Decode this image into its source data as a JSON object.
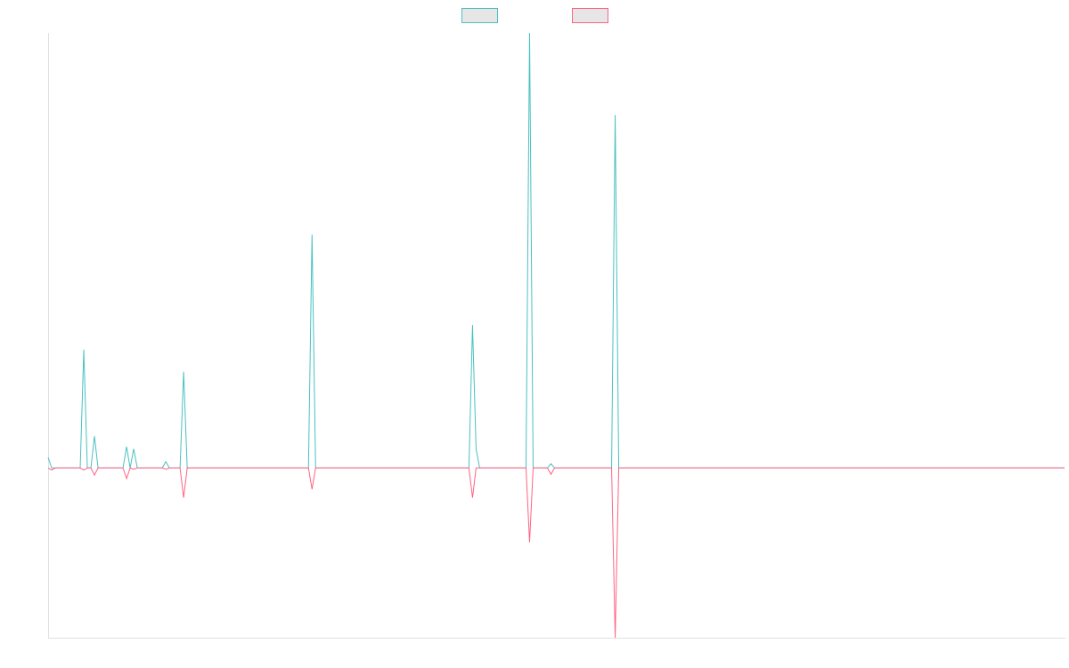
{
  "chart_data": {
    "type": "line",
    "title": "",
    "xlabel": "",
    "ylabel": "",
    "grid": false,
    "legend_placement": "top-center",
    "x": [
      0,
      1,
      2,
      3,
      4,
      5,
      6,
      7,
      8,
      9,
      10,
      11,
      12,
      13,
      14,
      15,
      16,
      17,
      18,
      19,
      20,
      21,
      22,
      23,
      24,
      25,
      26,
      27,
      28,
      29,
      30,
      31,
      32,
      33,
      34,
      35,
      36,
      37,
      38,
      39,
      40,
      41,
      42,
      43,
      44,
      45,
      46,
      47,
      48,
      49,
      50,
      51,
      52,
      53,
      54,
      55,
      56,
      57,
      58,
      59,
      60,
      61,
      62,
      63,
      64,
      65,
      66,
      67,
      68,
      69,
      70,
      71,
      72,
      73,
      74,
      75,
      76,
      77,
      78,
      79,
      80,
      81,
      82,
      83,
      84,
      85,
      86,
      87,
      88,
      89,
      90,
      91,
      92,
      93,
      94,
      95,
      96,
      97,
      98,
      99,
      100,
      101,
      102,
      103,
      104,
      105,
      106,
      107,
      108,
      109,
      110,
      111,
      112,
      113,
      114,
      115,
      116,
      117,
      118,
      119,
      120,
      121,
      122,
      123,
      124,
      125,
      126,
      127,
      128,
      129,
      130,
      131,
      132,
      133,
      134,
      135,
      136,
      137,
      138,
      139,
      140,
      141,
      142,
      143,
      144,
      145,
      146,
      147,
      148,
      149,
      150,
      151,
      152,
      153,
      154,
      155,
      156,
      157,
      158,
      159,
      160,
      161,
      162,
      163,
      164,
      165,
      166,
      167,
      168,
      169,
      170,
      171,
      172,
      173,
      174,
      175,
      176,
      177,
      178,
      179,
      180,
      181,
      182,
      183,
      184,
      185,
      186,
      187,
      188,
      189,
      190,
      191,
      192,
      193,
      194,
      195,
      196,
      197,
      198,
      199,
      200,
      201,
      202,
      203,
      204,
      205,
      206,
      207,
      208,
      209,
      210,
      211,
      212,
      213,
      214,
      215,
      216,
      217,
      218,
      219,
      220,
      221,
      222,
      223,
      224,
      225,
      226,
      227,
      228,
      229,
      230,
      231,
      232,
      233,
      234,
      235,
      236,
      237,
      238,
      239,
      240,
      241,
      242,
      243,
      244,
      245,
      246,
      247,
      248,
      249,
      250,
      251,
      252,
      253,
      254,
      255,
      256,
      257,
      258,
      259,
      260,
      261,
      262,
      263,
      264,
      265,
      266,
      267,
      268,
      269,
      270,
      271,
      272,
      273,
      274,
      275,
      276,
      277,
      278,
      279,
      280,
      281,
      282,
      283,
      284,
      285
    ],
    "ylim": [
      -240,
      615
    ],
    "series": [
      {
        "color": "#4bc0c0",
        "points": [
          [
            0,
            15
          ],
          [
            1,
            0
          ],
          [
            9,
            0
          ],
          [
            10,
            167
          ],
          [
            11,
            0
          ],
          [
            12,
            0
          ],
          [
            13,
            45
          ],
          [
            14,
            0
          ],
          [
            21,
            0
          ],
          [
            22,
            30
          ],
          [
            23,
            0
          ],
          [
            24,
            27
          ],
          [
            25,
            0
          ],
          [
            26,
            0
          ],
          [
            32,
            0
          ],
          [
            33,
            9
          ],
          [
            34,
            0
          ],
          [
            37,
            0
          ],
          [
            38,
            136
          ],
          [
            39,
            0
          ],
          [
            73,
            0
          ],
          [
            74,
            330
          ],
          [
            75,
            0
          ],
          [
            118,
            0
          ],
          [
            119,
            202
          ],
          [
            120,
            27
          ],
          [
            121,
            0
          ],
          [
            134,
            0
          ],
          [
            135,
            615
          ],
          [
            136,
            0
          ],
          [
            140,
            0
          ],
          [
            141,
            6
          ],
          [
            142,
            0
          ],
          [
            158,
            0
          ],
          [
            159,
            499
          ],
          [
            160,
            0
          ],
          [
            285,
            0
          ]
        ]
      },
      {
        "color": "#ff6384",
        "points": [
          [
            0,
            0
          ],
          [
            1,
            -3
          ],
          [
            9,
            0
          ],
          [
            10,
            -3
          ],
          [
            11,
            0
          ],
          [
            12,
            0
          ],
          [
            13,
            -10
          ],
          [
            14,
            0
          ],
          [
            21,
            0
          ],
          [
            22,
            -15
          ],
          [
            23,
            0
          ],
          [
            24,
            -2
          ],
          [
            25,
            0
          ],
          [
            26,
            0
          ],
          [
            32,
            0
          ],
          [
            33,
            -2
          ],
          [
            34,
            0
          ],
          [
            37,
            0
          ],
          [
            38,
            -42
          ],
          [
            39,
            0
          ],
          [
            73,
            0
          ],
          [
            74,
            -30
          ],
          [
            75,
            0
          ],
          [
            118,
            0
          ],
          [
            119,
            -42
          ],
          [
            120,
            0
          ],
          [
            134,
            0
          ],
          [
            135,
            -105
          ],
          [
            136,
            0
          ],
          [
            140,
            0
          ],
          [
            141,
            -9
          ],
          [
            142,
            0
          ],
          [
            158,
            0
          ],
          [
            159,
            -240
          ],
          [
            160,
            0
          ],
          [
            285,
            0
          ]
        ]
      }
    ]
  }
}
